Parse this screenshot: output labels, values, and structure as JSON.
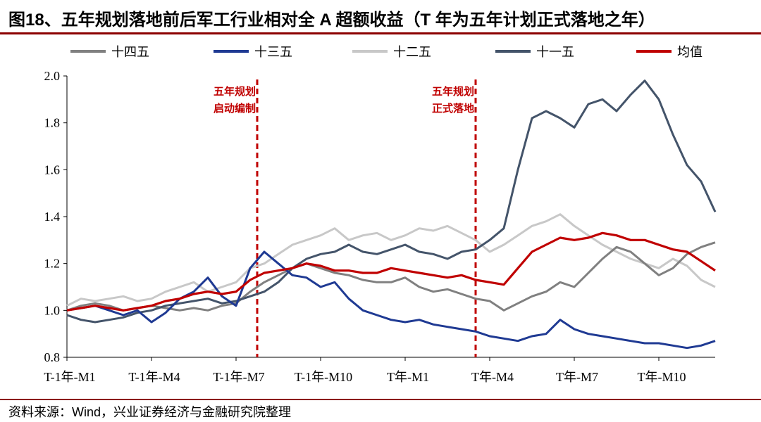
{
  "title": "图18、五年规划落地前后军工行业相对全 A 超额收益（T 年为五年计划正式落地之年）",
  "source": "资料来源：Wind，兴业证券经济与金融研究院整理",
  "chart_data": {
    "type": "line",
    "x_ticks": [
      "T-1年-M1",
      "T-1年-M4",
      "T-1年-M7",
      "T-1年-M10",
      "T年-M1",
      "T年-M4",
      "T年-M7",
      "T年-M10"
    ],
    "x_range": [
      0,
      23
    ],
    "ylim": [
      0.8,
      2.0
    ],
    "y_ticks": [
      "0.8",
      "1.0",
      "1.2",
      "1.4",
      "1.6",
      "1.8",
      "2.0"
    ],
    "grid": false,
    "legend_position": "top",
    "colors": {
      "十四五": "#808080",
      "十三五": "#1f3a93",
      "十二五": "#c8c8c8",
      "十一五": "#44546a",
      "均值": "#c00000",
      "annotation": "#c00000"
    },
    "vlines": [
      {
        "x": 6.75,
        "label_lines": [
          "五年规划",
          "启动编制"
        ]
      },
      {
        "x": 14.5,
        "label_lines": [
          "五年规划",
          "正式落地"
        ]
      }
    ],
    "series": [
      {
        "name": "十四五",
        "x": [
          0,
          0.5,
          1,
          1.5,
          2,
          2.5,
          3,
          3.5,
          4,
          4.5,
          5,
          5.5,
          6,
          6.5,
          7,
          7.5,
          8,
          8.5,
          9,
          9.5,
          10,
          10.5,
          11,
          11.5,
          12,
          12.5,
          13,
          13.5,
          14,
          14.5,
          15,
          15.5,
          16,
          16.5,
          17,
          17.5,
          18,
          18.5,
          19,
          19.5,
          20,
          20.5,
          21,
          21.5,
          22,
          22.5,
          23
        ],
        "y": [
          1.0,
          1.02,
          1.03,
          1.02,
          1.0,
          1.01,
          1.02,
          1.01,
          1.0,
          1.01,
          1.0,
          1.02,
          1.03,
          1.08,
          1.12,
          1.15,
          1.18,
          1.2,
          1.18,
          1.16,
          1.15,
          1.13,
          1.12,
          1.12,
          1.14,
          1.1,
          1.08,
          1.09,
          1.07,
          1.05,
          1.04,
          1.0,
          1.03,
          1.06,
          1.08,
          1.12,
          1.1,
          1.16,
          1.22,
          1.27,
          1.25,
          1.2,
          1.15,
          1.18,
          1.24,
          1.27,
          1.29
        ]
      },
      {
        "name": "十三五",
        "x": [
          0,
          0.5,
          1,
          1.5,
          2,
          2.5,
          3,
          3.5,
          4,
          4.5,
          5,
          5.5,
          6,
          6.5,
          7,
          7.5,
          8,
          8.5,
          9,
          9.5,
          10,
          10.5,
          11,
          11.5,
          12,
          12.5,
          13,
          13.5,
          14,
          14.5,
          15,
          15.5,
          16,
          16.5,
          17,
          17.5,
          18,
          18.5,
          19,
          19.5,
          20,
          20.5,
          21,
          21.5,
          22,
          22.5,
          23
        ],
        "y": [
          1.0,
          1.01,
          1.02,
          1.0,
          0.98,
          1.0,
          0.95,
          0.99,
          1.05,
          1.08,
          1.14,
          1.06,
          1.02,
          1.18,
          1.25,
          1.2,
          1.15,
          1.14,
          1.1,
          1.12,
          1.05,
          1.0,
          0.98,
          0.96,
          0.95,
          0.96,
          0.94,
          0.93,
          0.92,
          0.91,
          0.89,
          0.88,
          0.87,
          0.89,
          0.9,
          0.96,
          0.92,
          0.9,
          0.89,
          0.88,
          0.87,
          0.86,
          0.86,
          0.85,
          0.84,
          0.85,
          0.87
        ]
      },
      {
        "name": "十二五",
        "x": [
          0,
          0.5,
          1,
          1.5,
          2,
          2.5,
          3,
          3.5,
          4,
          4.5,
          5,
          5.5,
          6,
          6.5,
          7,
          7.5,
          8,
          8.5,
          9,
          9.5,
          10,
          10.5,
          11,
          11.5,
          12,
          12.5,
          13,
          13.5,
          14,
          14.5,
          15,
          15.5,
          16,
          16.5,
          17,
          17.5,
          18,
          18.5,
          19,
          19.5,
          20,
          20.5,
          21,
          21.5,
          22,
          22.5,
          23
        ],
        "y": [
          1.02,
          1.05,
          1.04,
          1.05,
          1.06,
          1.04,
          1.05,
          1.08,
          1.1,
          1.12,
          1.08,
          1.1,
          1.12,
          1.18,
          1.2,
          1.24,
          1.28,
          1.3,
          1.32,
          1.35,
          1.3,
          1.32,
          1.33,
          1.3,
          1.32,
          1.35,
          1.34,
          1.36,
          1.33,
          1.3,
          1.25,
          1.28,
          1.32,
          1.36,
          1.38,
          1.41,
          1.36,
          1.32,
          1.28,
          1.25,
          1.22,
          1.2,
          1.18,
          1.22,
          1.19,
          1.13,
          1.1
        ]
      },
      {
        "name": "十一五",
        "x": [
          0,
          0.5,
          1,
          1.5,
          2,
          2.5,
          3,
          3.5,
          4,
          4.5,
          5,
          5.5,
          6,
          6.5,
          7,
          7.5,
          8,
          8.5,
          9,
          9.5,
          10,
          10.5,
          11,
          11.5,
          12,
          12.5,
          13,
          13.5,
          14,
          14.5,
          15,
          15.5,
          16,
          16.5,
          17,
          17.5,
          18,
          18.5,
          19,
          19.5,
          20,
          20.5,
          21,
          21.5,
          22,
          22.5,
          23
        ],
        "y": [
          0.98,
          0.96,
          0.95,
          0.96,
          0.97,
          0.99,
          1.0,
          1.02,
          1.03,
          1.04,
          1.05,
          1.03,
          1.04,
          1.06,
          1.08,
          1.12,
          1.18,
          1.22,
          1.24,
          1.25,
          1.28,
          1.25,
          1.24,
          1.26,
          1.28,
          1.25,
          1.24,
          1.22,
          1.25,
          1.26,
          1.3,
          1.35,
          1.6,
          1.82,
          1.85,
          1.82,
          1.78,
          1.88,
          1.9,
          1.85,
          1.92,
          1.98,
          1.9,
          1.75,
          1.62,
          1.55,
          1.42
        ]
      },
      {
        "name": "均值",
        "x": [
          0,
          0.5,
          1,
          1.5,
          2,
          2.5,
          3,
          3.5,
          4,
          4.5,
          5,
          5.5,
          6,
          6.5,
          7,
          7.5,
          8,
          8.5,
          9,
          9.5,
          10,
          10.5,
          11,
          11.5,
          12,
          12.5,
          13,
          13.5,
          14,
          14.5,
          15,
          15.5,
          16,
          16.5,
          17,
          17.5,
          18,
          18.5,
          19,
          19.5,
          20,
          20.5,
          21,
          21.5,
          22,
          22.5,
          23
        ],
        "y": [
          1.0,
          1.01,
          1.02,
          1.01,
          1.0,
          1.01,
          1.02,
          1.04,
          1.05,
          1.07,
          1.08,
          1.07,
          1.08,
          1.13,
          1.16,
          1.17,
          1.18,
          1.2,
          1.19,
          1.17,
          1.17,
          1.16,
          1.16,
          1.18,
          1.17,
          1.16,
          1.15,
          1.14,
          1.15,
          1.13,
          1.12,
          1.11,
          1.18,
          1.25,
          1.28,
          1.31,
          1.3,
          1.31,
          1.33,
          1.32,
          1.3,
          1.3,
          1.28,
          1.26,
          1.25,
          1.21,
          1.17
        ]
      }
    ]
  }
}
